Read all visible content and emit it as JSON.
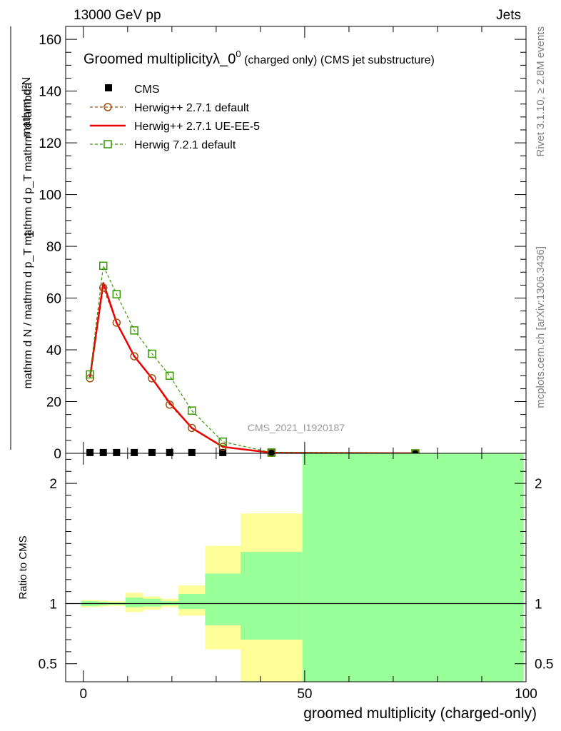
{
  "header": {
    "energy_label": "13000 GeV pp",
    "category_label": "Jets"
  },
  "side_labels": {
    "rivet": "Rivet 3.1.10, ≥ 2.8M events",
    "mcplots": "mcplots.cern.ch [arXiv:1306.3436]"
  },
  "chart_data": [
    {
      "type": "line",
      "title_main": "Groomed multiplicity",
      "title_lambda": "λ_0",
      "title_sup": "0",
      "title_rest": " (charged only) (CMS jet substructure)",
      "ylabel_top": "mathrm d²N",
      "ylabel_num": "1",
      "ylabel_den": "mathrm d N / mathrm d p_T mathrm d p_T mathrm d lambda",
      "watermark": "CMS_2021_I1920187",
      "xlim": [
        -4,
        100
      ],
      "ylim": [
        0,
        165
      ],
      "yticks": [
        0,
        20,
        40,
        60,
        80,
        100,
        120,
        140,
        160
      ],
      "ytick_labels": [
        "0",
        "20",
        "40",
        "60",
        "80",
        "100",
        "120",
        "140",
        "160"
      ],
      "legend_position": "top-left",
      "series": [
        {
          "name": "CMS",
          "color": "#000000",
          "marker": "square-filled",
          "x": [
            1.5,
            4.5,
            7.5,
            11.5,
            15.5,
            19.5,
            24.5,
            31.5,
            42.5,
            75
          ],
          "y": [
            0.3,
            0.3,
            0.3,
            0.3,
            0.3,
            0.3,
            0.3,
            0.3,
            0.1,
            0.0
          ]
        },
        {
          "name": "Herwig++ 2.7.1 default",
          "color": "#a05010",
          "marker": "circle-open",
          "line": "dashed",
          "x": [
            1.5,
            4.5,
            7.5,
            11.5,
            15.5,
            19.5,
            24.5,
            31.5,
            42.5,
            75
          ],
          "y": [
            29,
            64,
            50.5,
            37.5,
            29,
            18.8,
            9.8,
            2.5,
            0.2,
            0.0
          ]
        },
        {
          "name": "Herwig++ 2.7.1 UE-EE-5",
          "color": "#ee0000",
          "marker": "none",
          "line": "solid",
          "x": [
            1.5,
            4.5,
            7.5,
            11.5,
            15.5,
            19.5,
            24.5,
            31.5,
            42.5,
            75
          ],
          "y": [
            29.5,
            66,
            50.5,
            37.5,
            29,
            19.5,
            9.8,
            2.5,
            0.2,
            0.0
          ]
        },
        {
          "name": "Herwig 7.2.1 default",
          "color": "#339900",
          "marker": "square-open",
          "line": "dashed",
          "x": [
            1.5,
            4.5,
            7.5,
            11.5,
            15.5,
            19.5,
            24.5,
            31.5,
            42.5,
            75
          ],
          "y": [
            30.5,
            72.5,
            61.5,
            47.5,
            38.5,
            30.0,
            16.5,
            4.5,
            0.3,
            0.0
          ]
        }
      ]
    },
    {
      "type": "area",
      "ylabel": "Ratio to CMS",
      "xlabel": "groomed multiplicity (charged-only)",
      "xlim": [
        -4,
        100
      ],
      "ylim": [
        0.35,
        2.25
      ],
      "xticks": [
        0,
        50,
        100
      ],
      "xtick_labels": [
        "0",
        "50",
        "100"
      ],
      "yticks": [
        0.5,
        1,
        2
      ],
      "ytick_labels": [
        "0.5",
        "1",
        "2"
      ],
      "reference_line": 1,
      "bins": [
        {
          "x0": -0.5,
          "x1": 3.5,
          "stat": [
            0.98,
            1.02
          ],
          "total": [
            0.97,
            1.03
          ]
        },
        {
          "x0": 3.5,
          "x1": 5.5,
          "stat": [
            0.985,
            1.015
          ],
          "total": [
            0.975,
            1.025
          ]
        },
        {
          "x0": 5.5,
          "x1": 9.5,
          "stat": [
            0.99,
            1.01
          ],
          "total": [
            0.98,
            1.02
          ]
        },
        {
          "x0": 9.5,
          "x1": 13.5,
          "stat": [
            0.97,
            1.05
          ],
          "total": [
            0.93,
            1.09
          ]
        },
        {
          "x0": 13.5,
          "x1": 17.5,
          "stat": [
            0.975,
            1.04
          ],
          "total": [
            0.95,
            1.06
          ]
        },
        {
          "x0": 17.5,
          "x1": 21.5,
          "stat": [
            0.985,
            1.02
          ],
          "total": [
            0.97,
            1.04
          ]
        },
        {
          "x0": 21.5,
          "x1": 27.5,
          "stat": [
            0.955,
            1.08
          ],
          "total": [
            0.9,
            1.15
          ]
        },
        {
          "x0": 27.5,
          "x1": 35.5,
          "stat": [
            0.82,
            1.25
          ],
          "total": [
            0.62,
            1.48
          ]
        },
        {
          "x0": 35.5,
          "x1": 49.5,
          "stat": [
            0.7,
            1.43
          ],
          "total": [
            0.35,
            1.75
          ]
        },
        {
          "x0": 49.5,
          "x1": 99.5,
          "stat": [
            0.35,
            2.25
          ],
          "total": [
            0.35,
            2.25
          ]
        }
      ],
      "colors": {
        "stat": "#99ff99",
        "total": "#ffff99"
      }
    }
  ]
}
